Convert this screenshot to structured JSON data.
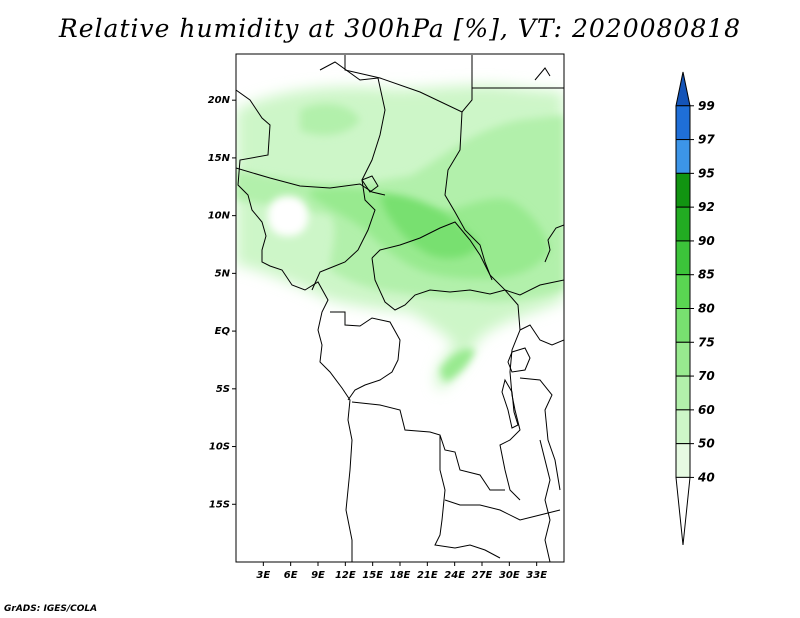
{
  "title": "Relative humidity at 300hPa [%], VT: 2020080818",
  "credit": "GrADS: IGES/COLA",
  "map": {
    "lon_range": [
      0,
      36
    ],
    "lat_range": [
      -20,
      24
    ],
    "lat_labels": [
      "20N",
      "15N",
      "10N",
      "5N",
      "EQ",
      "5S",
      "10S",
      "15S"
    ],
    "lat_values": [
      20,
      15,
      10,
      5,
      0,
      -5,
      -10,
      -15
    ],
    "lon_labels": [
      "3E",
      "6E",
      "9E",
      "12E",
      "15E",
      "18E",
      "21E",
      "24E",
      "27E",
      "30E",
      "33E"
    ],
    "lon_values": [
      3,
      6,
      9,
      12,
      15,
      18,
      21,
      24,
      27,
      30,
      33
    ]
  },
  "colorbar": {
    "labels": [
      "40",
      "50",
      "60",
      "70",
      "75",
      "80",
      "85",
      "90",
      "92",
      "95",
      "97",
      "99"
    ],
    "colors": [
      "#ffffff",
      "#e6fae2",
      "#cdf6c8",
      "#b2f0ab",
      "#98ea8f",
      "#78e070",
      "#5ad652",
      "#3cc43a",
      "#22ac22",
      "#119411",
      "#3c95e8",
      "#1f6fd8",
      "#1454b8"
    ]
  }
}
